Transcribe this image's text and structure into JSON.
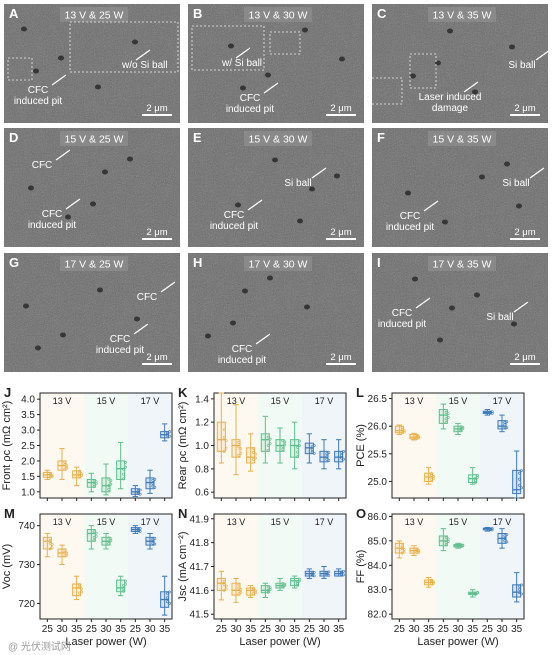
{
  "sem_panels": [
    {
      "letter": "A",
      "condition": "13 V & 25 W",
      "annotations": [
        "CFC\ninduced pit",
        "w/o Si ball"
      ],
      "scale": "2 μm"
    },
    {
      "letter": "B",
      "condition": "13 V & 30 W",
      "annotations": [
        "CFC\ninduced pit",
        "w/ Si ball"
      ],
      "scale": "2 μm"
    },
    {
      "letter": "C",
      "condition": "13 V & 35 W",
      "annotations": [
        "Laser induced\ndamage",
        "Si ball"
      ],
      "scale": "2 μm"
    },
    {
      "letter": "D",
      "condition": "15 V & 25 W",
      "annotations": [
        "CFC",
        "CFC\ninduced pit"
      ],
      "scale": "2 μm"
    },
    {
      "letter": "E",
      "condition": "15 V & 30 W",
      "annotations": [
        "Si ball",
        "CFC\ninduced pit"
      ],
      "scale": "2 μm"
    },
    {
      "letter": "F",
      "condition": "15 V & 35 W",
      "annotations": [
        "Si ball",
        "CFC\ninduced pit"
      ],
      "scale": "2 μm"
    },
    {
      "letter": "G",
      "condition": "17 V & 25 W",
      "annotations": [
        "CFC",
        "CFC\ninduced pit"
      ],
      "scale": "2 μm"
    },
    {
      "letter": "H",
      "condition": "17 V & 30 W",
      "annotations": [
        "CFC\ninduced pit"
      ],
      "scale": "2 μm"
    },
    {
      "letter": "I",
      "condition": "17 V & 35 W",
      "annotations": [
        "CFC\ninduced pit",
        "Si ball"
      ],
      "scale": "2 μm"
    }
  ],
  "shared_x": {
    "tick_labels": [
      "25",
      "30",
      "35",
      "25",
      "30",
      "35",
      "25",
      "30",
      "35"
    ],
    "xlabel": "Laser power (W)"
  },
  "group_labels": [
    "13 V",
    "15 V",
    "17 V"
  ],
  "group_colors": [
    "#e8b04a",
    "#5fbf8a",
    "#3f7ab8"
  ],
  "chart_data": [
    {
      "letter": "J",
      "type": "box",
      "ylabel": "Front ρc (mΩ cm²)",
      "ylim": [
        0.8,
        4.2
      ],
      "yticks": [
        1.0,
        1.5,
        2.0,
        2.5,
        3.0,
        3.5,
        4.0
      ],
      "boxes": [
        [
          1.4,
          1.47,
          1.55,
          1.63,
          1.7
        ],
        [
          1.4,
          1.7,
          1.85,
          2.0,
          2.4
        ],
        [
          1.2,
          1.45,
          1.55,
          1.68,
          1.8
        ],
        [
          1.0,
          1.15,
          1.3,
          1.4,
          1.6
        ],
        [
          0.9,
          1.0,
          1.2,
          1.45,
          1.9
        ],
        [
          1.1,
          1.4,
          1.75,
          2.0,
          2.6
        ],
        [
          0.85,
          0.92,
          1.0,
          1.1,
          1.2
        ],
        [
          0.95,
          1.1,
          1.3,
          1.45,
          1.7
        ],
        [
          2.65,
          2.75,
          2.85,
          2.95,
          3.2
        ]
      ]
    },
    {
      "letter": "K",
      "type": "box",
      "ylabel": "Rear ρc (mΩ cm²)",
      "ylim": [
        0.55,
        1.45
      ],
      "yticks": [
        0.6,
        0.8,
        1.0,
        1.2,
        1.4
      ],
      "boxes": [
        [
          0.85,
          0.95,
          1.05,
          1.2,
          1.45
        ],
        [
          0.75,
          0.9,
          1.0,
          1.05,
          1.35
        ],
        [
          0.78,
          0.85,
          0.9,
          0.98,
          1.1
        ],
        [
          0.85,
          0.95,
          1.05,
          1.1,
          1.25
        ],
        [
          0.85,
          0.95,
          1.0,
          1.05,
          1.15
        ],
        [
          0.8,
          0.9,
          1.0,
          1.05,
          1.2
        ],
        [
          0.85,
          0.93,
          0.98,
          1.02,
          1.1
        ],
        [
          0.8,
          0.86,
          0.9,
          0.95,
          1.05
        ],
        [
          0.8,
          0.86,
          0.9,
          0.95,
          1.05
        ]
      ]
    },
    {
      "letter": "L",
      "type": "box",
      "ylabel": "PCE (%)",
      "ylim": [
        24.7,
        26.6
      ],
      "yticks": [
        25.0,
        25.5,
        26.0,
        26.5
      ],
      "boxes": [
        [
          25.85,
          25.88,
          25.92,
          26.0,
          26.02
        ],
        [
          25.75,
          25.77,
          25.8,
          25.85,
          25.87
        ],
        [
          24.95,
          25.0,
          25.08,
          25.15,
          25.25
        ],
        [
          25.95,
          26.05,
          26.2,
          26.3,
          26.4
        ],
        [
          25.85,
          25.9,
          25.95,
          26.0,
          26.05
        ],
        [
          24.95,
          24.98,
          25.05,
          25.12,
          25.25
        ],
        [
          26.2,
          26.23,
          26.25,
          26.27,
          26.3
        ],
        [
          25.9,
          25.95,
          26.0,
          26.1,
          26.2
        ],
        [
          24.7,
          24.78,
          24.85,
          25.2,
          25.55
        ]
      ]
    },
    {
      "letter": "M",
      "type": "box",
      "ylabel": "Voc (mV)",
      "ylim": [
        716,
        743
      ],
      "yticks": [
        720,
        730,
        740
      ],
      "boxes": [
        [
          732,
          734,
          736,
          737,
          738
        ],
        [
          730,
          732,
          733,
          734,
          735
        ],
        [
          721,
          722,
          724,
          725,
          727
        ],
        [
          734,
          736,
          738,
          739,
          740
        ],
        [
          734,
          735,
          736,
          737,
          738
        ],
        [
          722,
          723,
          724,
          726,
          727
        ],
        [
          738,
          738.5,
          739,
          739.5,
          740
        ],
        [
          734,
          735,
          736,
          737,
          738
        ],
        [
          717,
          719,
          721,
          723,
          727
        ]
      ]
    },
    {
      "letter": "N",
      "type": "box",
      "ylabel": "Jsc (mA cm⁻²)",
      "ylim": [
        41.48,
        41.92
      ],
      "yticks": [
        41.5,
        41.6,
        41.7,
        41.8,
        41.9
      ],
      "boxes": [
        [
          41.56,
          41.6,
          41.63,
          41.65,
          41.68
        ],
        [
          41.55,
          41.58,
          41.6,
          41.63,
          41.65
        ],
        [
          41.57,
          41.58,
          41.6,
          41.61,
          41.62
        ],
        [
          41.57,
          41.59,
          41.6,
          41.62,
          41.63
        ],
        [
          41.6,
          41.61,
          41.62,
          41.63,
          41.65
        ],
        [
          41.61,
          41.62,
          41.64,
          41.65,
          41.66
        ],
        [
          41.65,
          41.66,
          41.67,
          41.68,
          41.69
        ],
        [
          41.65,
          41.66,
          41.67,
          41.68,
          41.7
        ],
        [
          41.66,
          41.66,
          41.67,
          41.68,
          41.69
        ]
      ]
    },
    {
      "letter": "O",
      "type": "box",
      "ylabel": "FF (%)",
      "ylim": [
        81.8,
        86.1
      ],
      "yticks": [
        82.0,
        83.0,
        84.0,
        85.0,
        86.0
      ],
      "boxes": [
        [
          84.3,
          84.5,
          84.7,
          84.9,
          85.0
        ],
        [
          84.4,
          84.5,
          84.6,
          84.7,
          84.8
        ],
        [
          83.1,
          83.2,
          83.3,
          83.4,
          83.5
        ],
        [
          84.6,
          84.8,
          85.0,
          85.2,
          85.5
        ],
        [
          84.7,
          84.75,
          84.8,
          84.85,
          84.9
        ],
        [
          82.7,
          82.8,
          82.85,
          82.9,
          83.0
        ],
        [
          85.4,
          85.45,
          85.5,
          85.52,
          85.55
        ],
        [
          84.7,
          84.9,
          85.1,
          85.3,
          85.5
        ],
        [
          82.5,
          82.7,
          82.9,
          83.2,
          83.7
        ]
      ]
    }
  ],
  "watermark": "@ 光伏测试网"
}
